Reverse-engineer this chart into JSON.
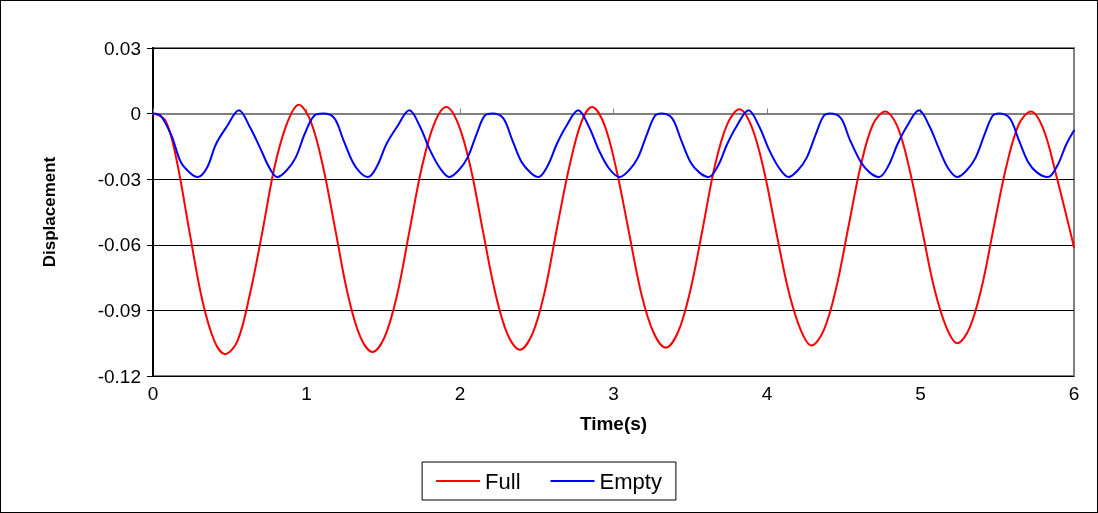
{
  "chart_data": {
    "type": "line",
    "xlabel": "Time(s)",
    "ylabel": "Displacement",
    "xlim": [
      0,
      6
    ],
    "xticks": [
      0,
      1,
      2,
      3,
      4,
      5,
      6
    ],
    "ylim": [
      -0.12,
      0.03
    ],
    "yticks": [
      -0.12,
      -0.09,
      -0.06,
      -0.03,
      0,
      0.03
    ],
    "grid": "y",
    "legend": "bottom",
    "marker": "none",
    "line_style": "solid",
    "series": [
      {
        "name": "Full",
        "color": "#ff0000",
        "x": [
          0,
          0.08,
          0.15,
          0.24,
          0.32,
          0.4,
          0.47,
          0.55,
          0.63,
          0.71,
          0.79,
          0.87,
          0.95,
          1.03,
          1.11,
          1.19,
          1.27,
          1.35,
          1.43,
          1.51,
          1.59,
          1.67,
          1.75,
          1.83,
          1.91,
          1.99,
          2.07,
          2.15,
          2.23,
          2.31,
          2.39,
          2.47,
          2.55,
          2.63,
          2.71,
          2.79,
          2.86,
          2.94,
          3.02,
          3.1,
          3.18,
          3.26,
          3.34,
          3.42,
          3.5,
          3.58,
          3.66,
          3.74,
          3.82,
          3.9,
          3.98,
          4.06,
          4.14,
          4.22,
          4.29,
          4.37,
          4.45,
          4.53,
          4.61,
          4.69,
          4.77,
          4.85,
          4.93,
          5.01,
          5.09,
          5.17,
          5.24,
          5.32,
          5.4,
          5.48,
          5.56,
          5.64,
          5.72,
          5.8,
          5.88,
          6
        ],
        "values": [
          0,
          -0.003,
          -0.02,
          -0.055,
          -0.085,
          -0.104,
          -0.11,
          -0.104,
          -0.083,
          -0.055,
          -0.025,
          -0.005,
          0.004,
          -0.004,
          -0.025,
          -0.054,
          -0.083,
          -0.102,
          -0.109,
          -0.102,
          -0.083,
          -0.054,
          -0.025,
          -0.005,
          0.003,
          -0.005,
          -0.025,
          -0.054,
          -0.082,
          -0.101,
          -0.108,
          -0.101,
          -0.082,
          -0.053,
          -0.025,
          -0.004,
          0.003,
          -0.005,
          -0.026,
          -0.054,
          -0.082,
          -0.1,
          -0.107,
          -0.1,
          -0.081,
          -0.053,
          -0.024,
          -0.005,
          0.002,
          -0.006,
          -0.026,
          -0.054,
          -0.081,
          -0.099,
          -0.106,
          -0.099,
          -0.08,
          -0.052,
          -0.024,
          -0.005,
          0.001,
          -0.006,
          -0.026,
          -0.053,
          -0.08,
          -0.098,
          -0.105,
          -0.098,
          -0.079,
          -0.051,
          -0.024,
          -0.005,
          0.001,
          -0.007,
          -0.027,
          -0.061
        ]
      },
      {
        "name": "Empty",
        "color": "#0000ff",
        "x": [
          0,
          0.05,
          0.12,
          0.18,
          0.24,
          0.29,
          0.35,
          0.41,
          0.48,
          0.56,
          0.63,
          0.7,
          0.76,
          0.81,
          0.87,
          0.93,
          0.99,
          1.05,
          1.11,
          1.18,
          1.24,
          1.3,
          1.35,
          1.4,
          1.46,
          1.52,
          1.59,
          1.67,
          1.74,
          1.8,
          1.87,
          1.93,
          1.99,
          2.05,
          2.11,
          2.16,
          2.21,
          2.28,
          2.34,
          2.4,
          2.46,
          2.51,
          2.57,
          2.63,
          2.69,
          2.77,
          2.84,
          2.9,
          2.97,
          3.04,
          3.1,
          3.16,
          3.22,
          3.27,
          3.31,
          3.38,
          3.44,
          3.5,
          3.56,
          3.62,
          3.68,
          3.74,
          3.8,
          3.88,
          3.95,
          4.01,
          4.08,
          4.14,
          4.2,
          4.26,
          4.32,
          4.37,
          4.41,
          4.48,
          4.54,
          4.61,
          4.67,
          4.73,
          4.79,
          4.85,
          4.91,
          4.99,
          5.06,
          5.12,
          5.18,
          5.24,
          5.3,
          5.36,
          5.42,
          5.47,
          5.51,
          5.58,
          5.64,
          5.7,
          5.76,
          5.83,
          5.89,
          5.95,
          6
        ],
        "values": [
          0,
          -0.001,
          -0.01,
          -0.022,
          -0.027,
          -0.029,
          -0.025,
          -0.014,
          -0.006,
          0.0015,
          -0.006,
          -0.016,
          -0.025,
          -0.029,
          -0.026,
          -0.02,
          -0.009,
          -0.001,
          0,
          -0.002,
          -0.012,
          -0.022,
          -0.027,
          -0.029,
          -0.024,
          -0.014,
          -0.006,
          0.0015,
          -0.006,
          -0.016,
          -0.025,
          -0.029,
          -0.026,
          -0.02,
          -0.009,
          -0.001,
          0,
          -0.002,
          -0.012,
          -0.022,
          -0.027,
          -0.029,
          -0.024,
          -0.014,
          -0.006,
          0.0015,
          -0.006,
          -0.016,
          -0.025,
          -0.029,
          -0.026,
          -0.02,
          -0.009,
          -0.001,
          0,
          -0.002,
          -0.012,
          -0.022,
          -0.027,
          -0.029,
          -0.024,
          -0.014,
          -0.006,
          0.0015,
          -0.006,
          -0.016,
          -0.025,
          -0.029,
          -0.026,
          -0.02,
          -0.009,
          -0.001,
          0,
          -0.002,
          -0.012,
          -0.022,
          -0.027,
          -0.029,
          -0.024,
          -0.014,
          -0.006,
          0.0015,
          -0.006,
          -0.016,
          -0.025,
          -0.029,
          -0.026,
          -0.02,
          -0.009,
          -0.001,
          0,
          -0.002,
          -0.012,
          -0.022,
          -0.027,
          -0.029,
          -0.024,
          -0.014,
          -0.0077
        ]
      }
    ]
  }
}
